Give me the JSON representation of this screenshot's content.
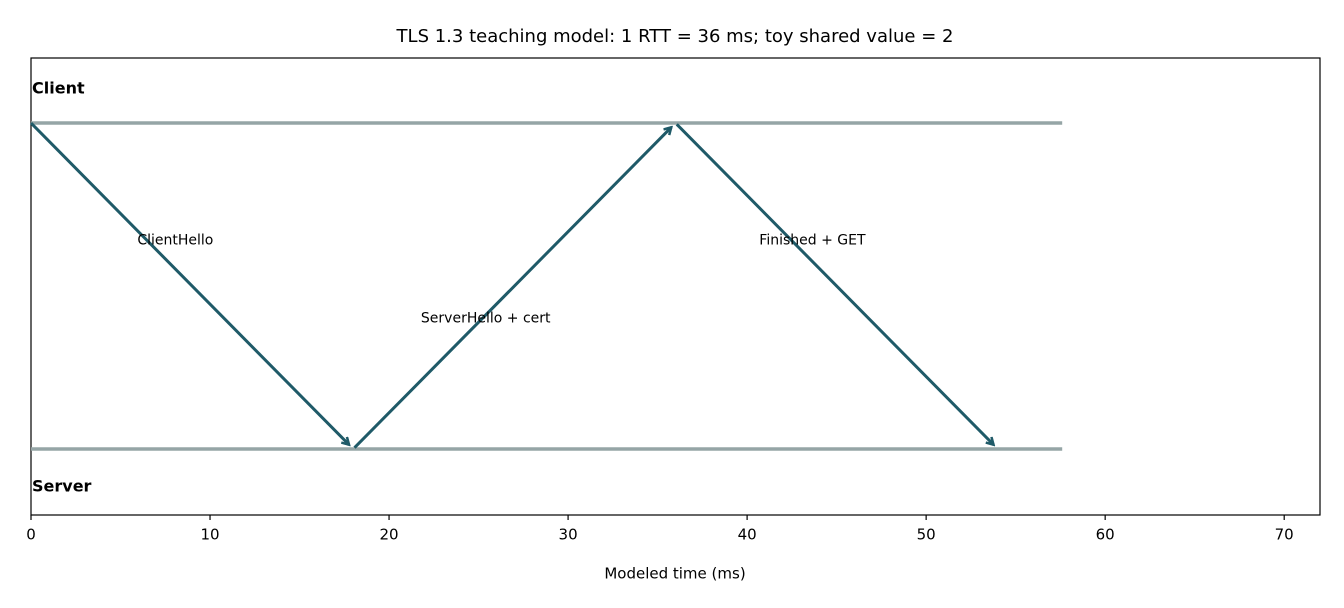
{
  "chart_data": {
    "type": "sequence",
    "title": "TLS 1.3 teaching model: 1 RTT = 36 ms; toy shared value = 2",
    "xlabel": "Modeled time (ms)",
    "xlim": [
      0,
      72
    ],
    "xticks": [
      0,
      10,
      20,
      30,
      40,
      50,
      60,
      70
    ],
    "lanes": [
      "Client",
      "Server"
    ],
    "lane_end": 57.6,
    "lane_color": "#95a5a6",
    "color": "#1f5a68",
    "messages": [
      {
        "label": "ClientHello",
        "from": "Client",
        "to": "Server",
        "start": 0,
        "end": 18
      },
      {
        "label": "ServerHello + cert",
        "from": "Server",
        "to": "Client",
        "start": 18,
        "end": 36
      },
      {
        "label": "Finished + GET",
        "from": "Client",
        "to": "Server",
        "start": 36,
        "end": 54
      }
    ]
  }
}
